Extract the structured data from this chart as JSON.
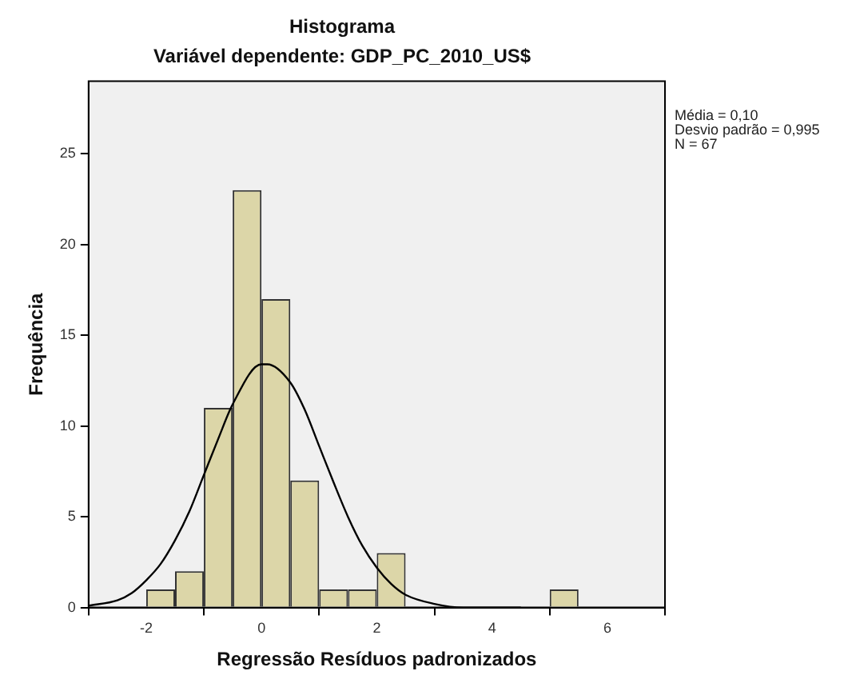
{
  "chart_data": {
    "type": "histogram",
    "title": "Histograma",
    "subtitle": "Variável dependente: GDP_PC_2010_US$",
    "xlabel": "Regressão Resíduos padronizados",
    "ylabel": "Frequência",
    "xlim": [
      -3,
      7
    ],
    "xticks": [
      -2,
      0,
      2,
      4,
      6
    ],
    "ylim": [
      0,
      29
    ],
    "yticks": [
      0,
      5,
      10,
      15,
      20,
      25
    ],
    "series": [
      {
        "color": "#dcd6a8",
        "bins": [
          -2,
          -1.5,
          -1,
          -0.5,
          0,
          0.5,
          1,
          1.5,
          2,
          2.5,
          3,
          3.5,
          4,
          4.5,
          5,
          5.5
        ],
        "values": [
          1,
          2,
          11,
          23,
          17,
          7,
          1,
          1,
          3,
          0,
          0,
          0,
          0,
          0,
          1
        ]
      },
      {
        "type": "line",
        "color": "#000000",
        "x": [
          -3,
          -2.5,
          -2.25,
          -2,
          -1.75,
          -1.5,
          -1.25,
          -1,
          -0.75,
          -0.5,
          0,
          0.1,
          0.5,
          0.75,
          1,
          1.25,
          1.5,
          1.75,
          2,
          2.25,
          2.5,
          3,
          3.5,
          4,
          4.5
        ],
        "values": [
          0.1,
          0.4,
          0.8,
          1.5,
          2.4,
          3.7,
          5.3,
          7.3,
          9.3,
          11.2,
          13.4,
          13.4,
          12.4,
          10.9,
          8.9,
          6.9,
          5,
          3.4,
          2.2,
          1.3,
          0.7,
          0.2,
          0,
          0,
          0
        ]
      }
    ],
    "annotations": [
      "Média = 0,10",
      "Desvio padrão = 0,995",
      "N = 67"
    ]
  }
}
